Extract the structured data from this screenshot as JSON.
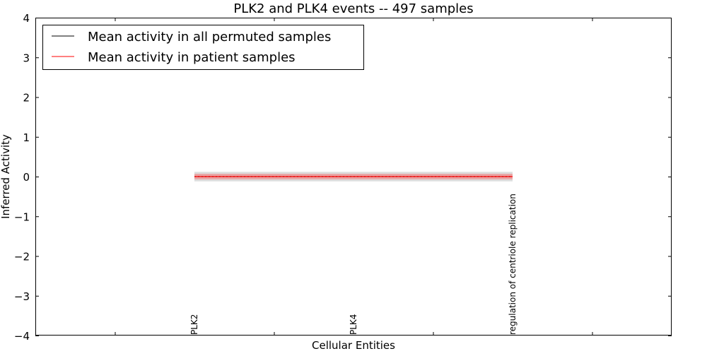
{
  "chart_data": {
    "type": "line",
    "title": "PLK2 and PLK4 events -- 497 samples",
    "xlabel": "Cellular Entities",
    "ylabel": "Inferred Activity",
    "categories": [
      "PLK2",
      "PLK4",
      "regulation of centriole replication"
    ],
    "xlim": [
      -1,
      3
    ],
    "ylim": [
      -4,
      4
    ],
    "yticks": [
      -4,
      -3,
      -2,
      -1,
      0,
      1,
      2,
      3,
      4
    ],
    "ytick_labels": [
      "−4",
      "−3",
      "−2",
      "−1",
      "0",
      "1",
      "2",
      "3",
      "4"
    ],
    "xticks_minor": [
      -0.5,
      0.5,
      1.5,
      2.5
    ],
    "grid": false,
    "legend_position": "top-left",
    "series": [
      {
        "name": "Mean activity in all permuted samples",
        "color": "#000000",
        "values": [
          0,
          0,
          0
        ],
        "band": [
          -0.12,
          0.12
        ],
        "band_color": "#bbbbbb"
      },
      {
        "name": "Mean activity in patient samples",
        "color": "#ff0000",
        "values": [
          0,
          0,
          0
        ],
        "band": [
          -0.07,
          0.07
        ],
        "band_color": "#f08080"
      }
    ]
  }
}
